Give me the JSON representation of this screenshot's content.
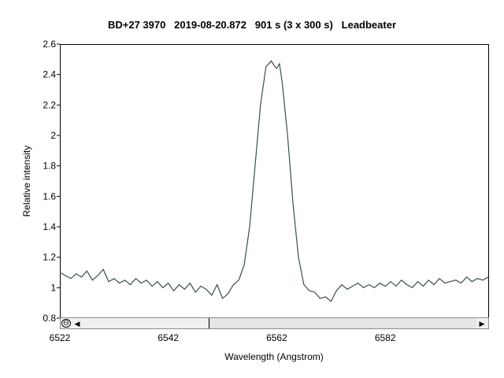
{
  "chart_data": {
    "type": "line",
    "title": "BD+27 3970   2019-08-20.872   901 s (3 x 300 s)   Leadbeater",
    "xlabel": "Wavelength (Angstrom)",
    "ylabel": "Relative intensity",
    "xlim": [
      6522,
      6601
    ],
    "ylim": [
      0.8,
      2.6
    ],
    "x_ticks": [
      6522,
      6542,
      6562,
      6582
    ],
    "y_ticks": [
      0.8,
      1,
      1.2,
      1.4,
      1.6,
      1.8,
      2,
      2.2,
      2.4,
      2.6
    ],
    "x_tick_labels": [
      "6522",
      "6542",
      "6562",
      "6582"
    ],
    "y_tick_labels": [
      "0.8",
      "1",
      "1.2",
      "1.4",
      "1.6",
      "1.8",
      "2",
      "2.2",
      "2.4",
      "2.6"
    ],
    "grid": false,
    "line_color": "#3c4d4d",
    "series": [
      {
        "x": [
          6522.0,
          6523.0,
          6524.0,
          6525.0,
          6526.0,
          6527.0,
          6528.0,
          6529.0,
          6530.0,
          6531.0,
          6532.0,
          6533.0,
          6534.0,
          6535.0,
          6536.0,
          6537.0,
          6538.0,
          6539.0,
          6540.0,
          6541.0,
          6542.0,
          6543.0,
          6544.0,
          6545.0,
          6546.0,
          6547.0,
          6548.0,
          6549.0,
          6550.0,
          6551.0,
          6552.0,
          6553.0,
          6554.0,
          6555.0,
          6556.0,
          6557.0,
          6558.0,
          6559.0,
          6560.0,
          6561.0,
          6561.5,
          6562.0,
          6562.5,
          6563.0,
          6564.0,
          6565.0,
          6566.0,
          6567.0,
          6568.0,
          6569.0,
          6570.0,
          6571.0,
          6572.0,
          6573.0,
          6574.0,
          6575.0,
          6576.0,
          6577.0,
          6578.0,
          6579.0,
          6580.0,
          6581.0,
          6582.0,
          6583.0,
          6584.0,
          6585.0,
          6586.0,
          6587.0,
          6588.0,
          6589.0,
          6590.0,
          6591.0,
          6592.0,
          6593.0,
          6594.0,
          6595.0,
          6596.0,
          6597.0,
          6598.0,
          6599.0,
          6600.0,
          6601.0
        ],
        "y": [
          1.1,
          1.08,
          1.06,
          1.09,
          1.07,
          1.11,
          1.05,
          1.08,
          1.12,
          1.04,
          1.06,
          1.03,
          1.05,
          1.02,
          1.06,
          1.03,
          1.05,
          1.01,
          1.04,
          1.0,
          1.03,
          0.98,
          1.02,
          0.99,
          1.03,
          0.97,
          1.01,
          0.99,
          0.95,
          1.02,
          0.93,
          0.96,
          1.02,
          1.05,
          1.15,
          1.4,
          1.8,
          2.2,
          2.45,
          2.49,
          2.46,
          2.44,
          2.47,
          2.35,
          2.0,
          1.55,
          1.2,
          1.02,
          0.98,
          0.97,
          0.93,
          0.94,
          0.91,
          0.98,
          1.02,
          0.99,
          1.01,
          1.03,
          1.0,
          1.02,
          1.0,
          1.03,
          1.01,
          1.04,
          1.01,
          1.05,
          1.02,
          1.0,
          1.04,
          1.01,
          1.05,
          1.02,
          1.06,
          1.03,
          1.04,
          1.05,
          1.03,
          1.07,
          1.04,
          1.06,
          1.05,
          1.07
        ]
      }
    ]
  },
  "scrollbar": {
    "zoom_reset_glyph": "⊖",
    "left_arrow": "◀",
    "right_arrow": "▶",
    "thumb_start_fraction": 0.32,
    "thumb_end_fraction": 1.0
  }
}
